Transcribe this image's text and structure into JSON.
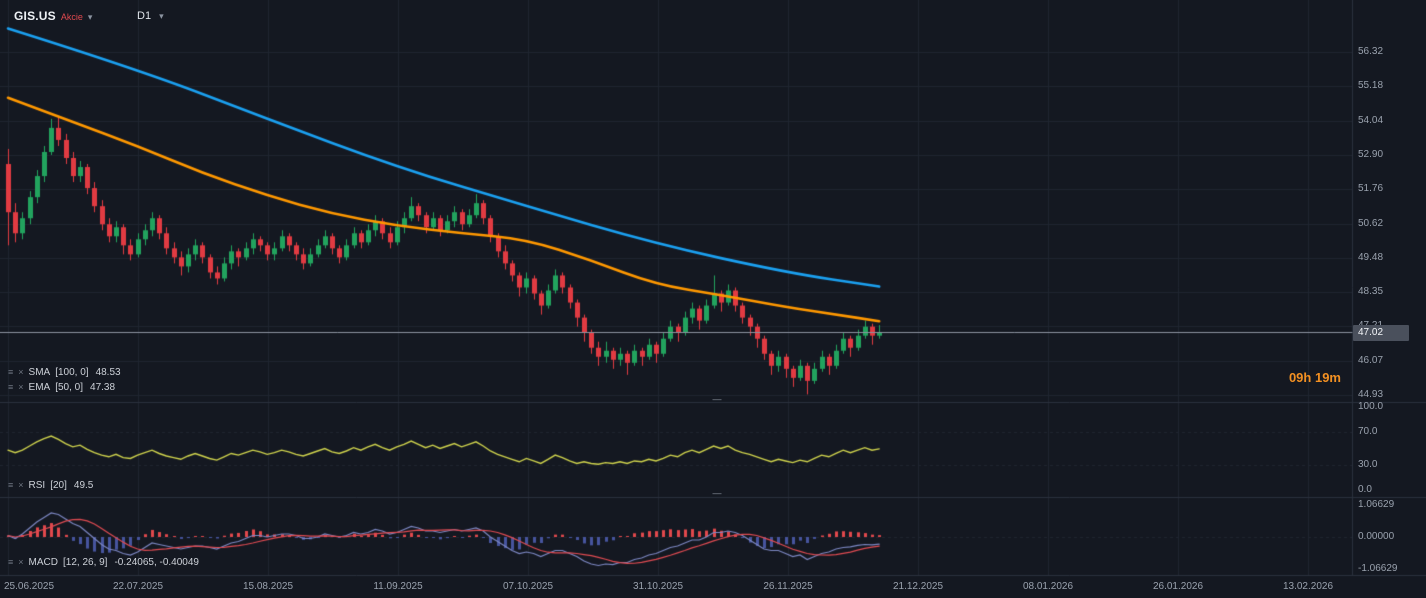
{
  "header": {
    "symbol": "GIS.US",
    "asset_class": "Akcie",
    "timeframe": "D1"
  },
  "price_pane": {
    "current_price": "47.02",
    "countdown": "09h 19m"
  },
  "indicator_rows": {
    "sma": {
      "name": "SMA",
      "params": "[100, 0]",
      "value": "48.53"
    },
    "ema": {
      "name": "EMA",
      "params": "[50, 0]",
      "value": "47.38"
    },
    "rsi": {
      "name": "RSI",
      "params": "[20]",
      "value": "49.5"
    },
    "macd": {
      "name": "MACD",
      "params": "[12, 26, 9]",
      "value": "-0.24065, -0.40049"
    }
  },
  "icons": {
    "chevron_down": "▾",
    "settings_glyph": "≡",
    "close_glyph": "×",
    "resize_handle": "—"
  },
  "colors": {
    "background": "#141821",
    "grid": "#1f2530",
    "separator": "#2a313d",
    "up": "#22a35e",
    "down": "#e13b42",
    "sma": "#1ba0f0",
    "ema": "#ff9800",
    "rsi": "#d0d44d",
    "macd_line": "#7d88c4",
    "signal_line": "#e14b52",
    "hist_pos": "#e1484c",
    "hist_neg": "#46549e",
    "axis_text": "#9aa2ae",
    "price_line": "#8c93a0",
    "badge_bg": "#4a505c",
    "countdown": "#f29022",
    "asset_class": "#e0494f"
  },
  "chart_data": {
    "type": "candlestick",
    "title": "GIS.US D1 with SMA(100), EMA(50), RSI(20), MACD(12,26,9)",
    "price_ticks": [
      "56.32",
      "55.18",
      "54.04",
      "52.90",
      "51.76",
      "50.62",
      "49.48",
      "48.35",
      "47.21",
      "46.07",
      "44.93"
    ],
    "date_ticks": [
      "25.06.2025",
      "22.07.2025",
      "15.08.2025",
      "11.09.2025",
      "07.10.2025",
      "31.10.2025",
      "26.11.2025",
      "21.12.2025",
      "08.01.2026",
      "26.01.2026",
      "13.02.2026"
    ],
    "rsi_ticks": [
      "100.0",
      "70.0",
      "30.0",
      "0.0"
    ],
    "macd_ticks": [
      "1.06629",
      "0.00000",
      "-1.06629"
    ],
    "price_range": [
      44.93,
      56.32
    ],
    "rsi_range": [
      0,
      100
    ],
    "macd_range": [
      -1.06629,
      1.06629
    ],
    "current_price": 47.02,
    "legend": [
      "SMA [100, 0]",
      "EMA [50, 0]",
      "RSI [20]",
      "MACD [12, 26, 9]"
    ],
    "candles": [
      [
        52.6,
        53.1,
        49.9,
        51.0
      ],
      [
        51.0,
        51.3,
        50.0,
        50.3
      ],
      [
        50.3,
        51.0,
        50.1,
        50.8
      ],
      [
        50.8,
        51.7,
        50.6,
        51.5
      ],
      [
        51.5,
        52.4,
        51.3,
        52.2
      ],
      [
        52.2,
        53.2,
        52.0,
        53.0
      ],
      [
        53.0,
        54.1,
        52.9,
        53.8
      ],
      [
        53.8,
        54.2,
        53.2,
        53.4
      ],
      [
        53.4,
        53.6,
        52.6,
        52.8
      ],
      [
        52.8,
        53.0,
        52.0,
        52.2
      ],
      [
        52.2,
        52.7,
        52.0,
        52.5
      ],
      [
        52.5,
        52.6,
        51.6,
        51.8
      ],
      [
        51.8,
        52.0,
        51.0,
        51.2
      ],
      [
        51.2,
        51.4,
        50.4,
        50.6
      ],
      [
        50.6,
        50.8,
        50.0,
        50.2
      ],
      [
        50.2,
        50.7,
        50.0,
        50.5
      ],
      [
        50.5,
        50.6,
        49.6,
        49.9
      ],
      [
        49.9,
        50.1,
        49.4,
        49.6
      ],
      [
        49.6,
        50.3,
        49.5,
        50.1
      ],
      [
        50.1,
        50.6,
        49.9,
        50.4
      ],
      [
        50.4,
        51.0,
        50.2,
        50.8
      ],
      [
        50.8,
        50.9,
        50.1,
        50.3
      ],
      [
        50.3,
        50.5,
        49.6,
        49.8
      ],
      [
        49.8,
        50.0,
        49.3,
        49.5
      ],
      [
        49.5,
        49.7,
        48.9,
        49.2
      ],
      [
        49.2,
        49.8,
        49.0,
        49.6
      ],
      [
        49.6,
        50.1,
        49.4,
        49.9
      ],
      [
        49.9,
        50.0,
        49.3,
        49.5
      ],
      [
        49.5,
        49.6,
        48.8,
        49.0
      ],
      [
        49.0,
        49.2,
        48.6,
        48.8
      ],
      [
        48.8,
        49.5,
        48.7,
        49.3
      ],
      [
        49.3,
        49.9,
        49.1,
        49.7
      ],
      [
        49.7,
        49.8,
        49.2,
        49.5
      ],
      [
        49.5,
        50.0,
        49.4,
        49.8
      ],
      [
        49.8,
        50.3,
        49.6,
        50.1
      ],
      [
        50.1,
        50.2,
        49.7,
        49.9
      ],
      [
        49.9,
        50.0,
        49.4,
        49.6
      ],
      [
        49.6,
        50.0,
        49.4,
        49.8
      ],
      [
        49.8,
        50.4,
        49.7,
        50.2
      ],
      [
        50.2,
        50.3,
        49.7,
        49.9
      ],
      [
        49.9,
        50.0,
        49.4,
        49.6
      ],
      [
        49.6,
        49.8,
        49.1,
        49.3
      ],
      [
        49.3,
        49.8,
        49.2,
        49.6
      ],
      [
        49.6,
        50.1,
        49.5,
        49.9
      ],
      [
        49.9,
        50.4,
        49.8,
        50.2
      ],
      [
        50.2,
        50.3,
        49.6,
        49.8
      ],
      [
        49.8,
        49.9,
        49.3,
        49.5
      ],
      [
        49.5,
        50.1,
        49.4,
        49.9
      ],
      [
        49.9,
        50.5,
        49.8,
        50.3
      ],
      [
        50.3,
        50.4,
        49.8,
        50.0
      ],
      [
        50.0,
        50.6,
        49.9,
        50.4
      ],
      [
        50.4,
        50.9,
        50.2,
        50.7
      ],
      [
        50.7,
        50.8,
        50.1,
        50.3
      ],
      [
        50.3,
        50.5,
        49.8,
        50.0
      ],
      [
        50.0,
        50.7,
        49.9,
        50.5
      ],
      [
        50.5,
        51.0,
        50.3,
        50.8
      ],
      [
        50.8,
        51.5,
        50.7,
        51.2
      ],
      [
        51.2,
        51.3,
        50.7,
        50.9
      ],
      [
        50.9,
        51.0,
        50.3,
        50.5
      ],
      [
        50.5,
        51.0,
        50.4,
        50.8
      ],
      [
        50.8,
        50.9,
        50.2,
        50.4
      ],
      [
        50.4,
        50.9,
        50.3,
        50.7
      ],
      [
        50.7,
        51.2,
        50.5,
        51.0
      ],
      [
        51.0,
        51.1,
        50.4,
        50.6
      ],
      [
        50.6,
        51.1,
        50.5,
        50.9
      ],
      [
        50.9,
        51.6,
        50.8,
        51.3
      ],
      [
        51.3,
        51.4,
        50.6,
        50.8
      ],
      [
        50.8,
        50.9,
        50.0,
        50.2
      ],
      [
        50.2,
        50.3,
        49.5,
        49.7
      ],
      [
        49.7,
        49.9,
        49.1,
        49.3
      ],
      [
        49.3,
        49.4,
        48.7,
        48.9
      ],
      [
        48.9,
        49.0,
        48.2,
        48.5
      ],
      [
        48.5,
        49.0,
        48.3,
        48.8
      ],
      [
        48.8,
        48.9,
        48.1,
        48.3
      ],
      [
        48.3,
        48.4,
        47.6,
        47.9
      ],
      [
        47.9,
        48.6,
        47.8,
        48.4
      ],
      [
        48.4,
        49.1,
        48.3,
        48.9
      ],
      [
        48.9,
        49.0,
        48.3,
        48.5
      ],
      [
        48.5,
        48.6,
        47.8,
        48.0
      ],
      [
        48.0,
        48.1,
        47.2,
        47.5
      ],
      [
        47.5,
        47.6,
        46.7,
        47.0
      ],
      [
        47.0,
        47.1,
        46.3,
        46.5
      ],
      [
        46.5,
        46.7,
        45.9,
        46.2
      ],
      [
        46.2,
        46.7,
        46.0,
        46.4
      ],
      [
        46.4,
        46.5,
        45.8,
        46.1
      ],
      [
        46.1,
        46.5,
        45.9,
        46.3
      ],
      [
        46.3,
        46.4,
        45.6,
        46.0
      ],
      [
        46.0,
        46.6,
        45.9,
        46.4
      ],
      [
        46.4,
        46.5,
        45.9,
        46.2
      ],
      [
        46.2,
        46.8,
        46.1,
        46.6
      ],
      [
        46.6,
        46.7,
        46.0,
        46.3
      ],
      [
        46.3,
        47.0,
        46.2,
        46.8
      ],
      [
        46.8,
        47.4,
        46.7,
        47.2
      ],
      [
        47.2,
        47.3,
        46.7,
        47.0
      ],
      [
        47.0,
        47.7,
        46.9,
        47.5
      ],
      [
        47.5,
        48.0,
        47.3,
        47.8
      ],
      [
        47.8,
        47.9,
        47.1,
        47.4
      ],
      [
        47.4,
        48.1,
        47.3,
        47.9
      ],
      [
        47.9,
        48.9,
        47.8,
        48.3
      ],
      [
        48.3,
        48.4,
        47.7,
        48.0
      ],
      [
        48.0,
        48.6,
        47.9,
        48.4
      ],
      [
        48.4,
        48.5,
        47.7,
        47.9
      ],
      [
        47.9,
        48.0,
        47.3,
        47.5
      ],
      [
        47.5,
        47.6,
        46.9,
        47.2
      ],
      [
        47.2,
        47.3,
        46.5,
        46.8
      ],
      [
        46.8,
        46.9,
        46.1,
        46.3
      ],
      [
        46.3,
        46.4,
        45.6,
        45.9
      ],
      [
        45.9,
        46.4,
        45.7,
        46.2
      ],
      [
        46.2,
        46.3,
        45.5,
        45.8
      ],
      [
        45.8,
        45.9,
        45.2,
        45.5
      ],
      [
        45.5,
        46.1,
        45.4,
        45.9
      ],
      [
        45.9,
        46.0,
        44.95,
        45.4
      ],
      [
        45.4,
        46.0,
        45.3,
        45.8
      ],
      [
        45.8,
        46.4,
        45.7,
        46.2
      ],
      [
        46.2,
        46.3,
        45.6,
        45.9
      ],
      [
        45.9,
        46.6,
        45.8,
        46.4
      ],
      [
        46.4,
        47.0,
        46.3,
        46.8
      ],
      [
        46.8,
        46.9,
        46.2,
        46.5
      ],
      [
        46.5,
        47.1,
        46.4,
        46.9
      ],
      [
        46.9,
        47.4,
        46.8,
        47.2
      ],
      [
        47.2,
        47.3,
        46.6,
        46.9
      ],
      [
        46.9,
        47.25,
        46.8,
        47.02
      ]
    ],
    "sma100_waypoints": [
      [
        0,
        57.1
      ],
      [
        18,
        55.75
      ],
      [
        36,
        54.1
      ],
      [
        54,
        52.5
      ],
      [
        72,
        51.2
      ],
      [
        90,
        49.95
      ],
      [
        108,
        49.0
      ],
      [
        121,
        48.53
      ]
    ],
    "ema50_waypoints": [
      [
        0,
        54.8
      ],
      [
        9,
        54.0
      ],
      [
        18,
        53.2
      ],
      [
        27,
        52.3
      ],
      [
        36,
        51.55
      ],
      [
        45,
        50.95
      ],
      [
        54,
        50.55
      ],
      [
        63,
        50.3
      ],
      [
        72,
        50.1
      ],
      [
        81,
        49.4
      ],
      [
        90,
        48.6
      ],
      [
        99,
        48.25
      ],
      [
        108,
        47.85
      ],
      [
        115,
        47.6
      ],
      [
        121,
        47.38
      ]
    ],
    "rsi20": [
      48,
      45,
      48,
      53,
      58,
      62,
      65,
      61,
      56,
      52,
      54,
      49,
      45,
      42,
      40,
      43,
      39,
      38,
      42,
      45,
      48,
      44,
      41,
      39,
      37,
      41,
      44,
      41,
      38,
      36,
      40,
      44,
      42,
      45,
      48,
      46,
      43,
      45,
      48,
      46,
      43,
      41,
      44,
      47,
      50,
      46,
      44,
      47,
      51,
      48,
      52,
      55,
      51,
      48,
      52,
      55,
      59,
      55,
      51,
      54,
      50,
      53,
      56,
      52,
      55,
      58,
      53,
      47,
      43,
      40,
      37,
      34,
      38,
      35,
      32,
      37,
      42,
      39,
      35,
      32,
      34,
      32,
      31,
      33,
      32,
      34,
      32,
      35,
      34,
      37,
      35,
      38,
      42,
      40,
      45,
      48,
      45,
      49,
      53,
      50,
      53,
      48,
      45,
      43,
      40,
      37,
      34,
      37,
      35,
      33,
      36,
      34,
      38,
      42,
      40,
      44,
      48,
      45,
      48,
      51,
      48,
      49.5
    ],
    "macd": [
      0.05,
      -0.05,
      0.1,
      0.3,
      0.5,
      0.65,
      0.8,
      0.75,
      0.6,
      0.45,
      0.35,
      0.15,
      -0.05,
      -0.25,
      -0.4,
      -0.45,
      -0.55,
      -0.6,
      -0.5,
      -0.35,
      -0.2,
      -0.25,
      -0.3,
      -0.35,
      -0.4,
      -0.35,
      -0.3,
      -0.3,
      -0.35,
      -0.4,
      -0.3,
      -0.2,
      -0.15,
      -0.05,
      0.05,
      0.05,
      0.0,
      0.05,
      0.1,
      0.1,
      0.05,
      -0.05,
      -0.05,
      0.0,
      0.1,
      0.05,
      0.0,
      0.05,
      0.15,
      0.1,
      0.15,
      0.25,
      0.2,
      0.1,
      0.15,
      0.25,
      0.35,
      0.3,
      0.2,
      0.2,
      0.15,
      0.2,
      0.25,
      0.2,
      0.25,
      0.3,
      0.2,
      0.0,
      -0.15,
      -0.3,
      -0.45,
      -0.55,
      -0.5,
      -0.55,
      -0.65,
      -0.55,
      -0.45,
      -0.45,
      -0.55,
      -0.65,
      -0.8,
      -0.9,
      -0.95,
      -0.9,
      -0.92,
      -0.85,
      -0.85,
      -0.75,
      -0.7,
      -0.6,
      -0.55,
      -0.45,
      -0.35,
      -0.3,
      -0.2,
      -0.1,
      -0.1,
      0.0,
      0.15,
      0.15,
      0.2,
      0.15,
      0.05,
      -0.1,
      -0.25,
      -0.4,
      -0.45,
      -0.45,
      -0.55,
      -0.65,
      -0.6,
      -0.75,
      -0.65,
      -0.55,
      -0.5,
      -0.4,
      -0.35,
      -0.33,
      -0.28,
      -0.25,
      -0.26,
      -0.24
    ]
  }
}
